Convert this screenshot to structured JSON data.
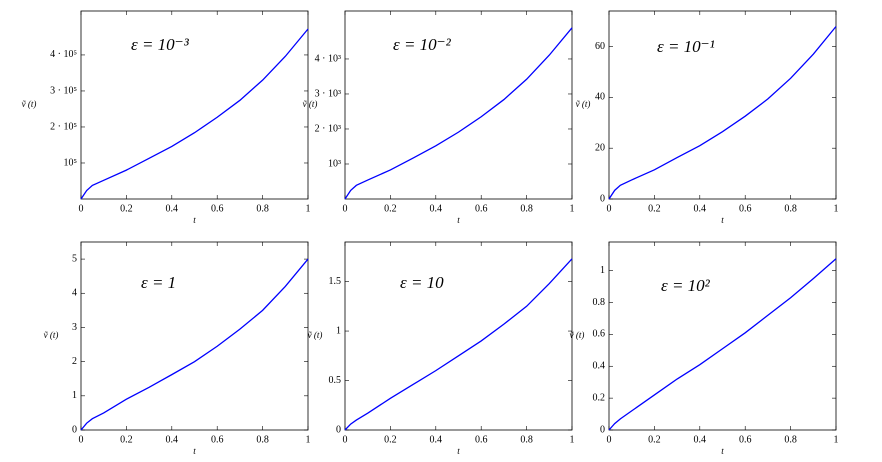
{
  "chart_data": [
    {
      "type": "line",
      "annotation": "ε = 10⁻³",
      "xlabel": "t",
      "ylabel": "ṽ (t)",
      "x": [
        0,
        0.025,
        0.05,
        0.1,
        0.2,
        0.3,
        0.4,
        0.5,
        0.6,
        0.7,
        0.8,
        0.9,
        1
      ],
      "series": [
        {
          "color": "#0000ff",
          "values": [
            0,
            23600,
            37800,
            51900,
            80200,
            113000,
            146000,
            184000,
            227000,
            274000,
            330000,
            396000,
            472000
          ]
        }
      ],
      "xlim": [
        0,
        1
      ],
      "ylim": [
        0,
        522000
      ],
      "xticks": [
        0,
        0.2,
        0.4,
        0.6,
        0.8,
        1
      ],
      "yticks": [
        {
          "value": 100000,
          "label": "10⁵"
        },
        {
          "value": 200000,
          "label": "2 · 10⁵"
        },
        {
          "value": 300000,
          "label": "3 · 10⁵"
        },
        {
          "value": 400000,
          "label": "4 · 10⁵"
        }
      ]
    },
    {
      "type": "line",
      "annotation": "ε = 10⁻²",
      "xlabel": "t",
      "ylabel": "ṽ (t)",
      "x": [
        0,
        0.025,
        0.05,
        0.1,
        0.2,
        0.3,
        0.4,
        0.5,
        0.6,
        0.7,
        0.8,
        0.9,
        1
      ],
      "series": [
        {
          "color": "#0000ff",
          "values": [
            0,
            245,
            390,
            540,
            830,
            1170,
            1520,
            1910,
            2350,
            2840,
            3420,
            4110,
            4890
          ]
        }
      ],
      "xlim": [
        0,
        1
      ],
      "ylim": [
        0,
        5370
      ],
      "xticks": [
        0,
        0.2,
        0.4,
        0.6,
        0.8,
        1
      ],
      "yticks": [
        {
          "value": 1000,
          "label": "10³"
        },
        {
          "value": 2000,
          "label": "2 · 10³"
        },
        {
          "value": 3000,
          "label": "3 · 10³"
        },
        {
          "value": 4000,
          "label": "4 · 10³"
        }
      ]
    },
    {
      "type": "line",
      "annotation": "ε = 10⁻¹",
      "xlabel": "t",
      "ylabel": "ṽ (t)",
      "x": [
        0,
        0.025,
        0.05,
        0.1,
        0.2,
        0.3,
        0.4,
        0.5,
        0.6,
        0.7,
        0.8,
        0.9,
        1
      ],
      "series": [
        {
          "color": "#0000ff",
          "values": [
            0,
            3.4,
            5.4,
            7.5,
            11.5,
            16.3,
            21,
            26.5,
            32.6,
            39.4,
            47.5,
            57,
            67.9
          ]
        }
      ],
      "xlim": [
        0,
        1
      ],
      "ylim": [
        0,
        74
      ],
      "xticks": [
        0,
        0.2,
        0.4,
        0.6,
        0.8,
        1
      ],
      "yticks": [
        0,
        20,
        40,
        60
      ]
    },
    {
      "type": "line",
      "annotation": "ε = 1",
      "xlabel": "t",
      "ylabel": "ṽ (t)",
      "x": [
        0,
        0.025,
        0.05,
        0.1,
        0.2,
        0.3,
        0.4,
        0.5,
        0.6,
        0.7,
        0.8,
        0.9,
        1
      ],
      "series": [
        {
          "color": "#0000ff",
          "values": [
            0,
            0.2,
            0.33,
            0.5,
            0.9,
            1.25,
            1.62,
            2.0,
            2.45,
            2.95,
            3.5,
            4.2,
            5.0
          ]
        }
      ],
      "xlim": [
        0,
        1
      ],
      "ylim": [
        0,
        5.5
      ],
      "xticks": [
        0,
        0.2,
        0.4,
        0.6,
        0.8,
        1
      ],
      "yticks": [
        0,
        1,
        2,
        3,
        4,
        5
      ]
    },
    {
      "type": "line",
      "annotation": "ε = 10",
      "xlabel": "t",
      "ylabel": "ṽ (t)",
      "x": [
        0,
        0.025,
        0.05,
        0.1,
        0.2,
        0.3,
        0.4,
        0.5,
        0.6,
        0.7,
        0.8,
        0.9,
        1
      ],
      "series": [
        {
          "color": "#0000ff",
          "values": [
            0,
            0.06,
            0.1,
            0.17,
            0.32,
            0.46,
            0.6,
            0.75,
            0.9,
            1.07,
            1.25,
            1.48,
            1.73
          ]
        }
      ],
      "xlim": [
        0,
        1
      ],
      "ylim": [
        0,
        1.9
      ],
      "xticks": [
        0,
        0.2,
        0.4,
        0.6,
        0.8,
        1
      ],
      "yticks": [
        0,
        0.5,
        1,
        1.5
      ]
    },
    {
      "type": "line",
      "annotation": "ε = 10²",
      "xlabel": "t",
      "ylabel": "ṽ (t)",
      "x": [
        0,
        0.025,
        0.05,
        0.1,
        0.2,
        0.3,
        0.4,
        0.5,
        0.6,
        0.7,
        0.8,
        0.9,
        1
      ],
      "series": [
        {
          "color": "#0000ff",
          "values": [
            0,
            0.04,
            0.07,
            0.12,
            0.22,
            0.32,
            0.41,
            0.51,
            0.61,
            0.72,
            0.83,
            0.95,
            1.075
          ]
        }
      ],
      "xlim": [
        0,
        1
      ],
      "ylim": [
        0,
        1.18
      ],
      "xticks": [
        0,
        0.2,
        0.4,
        0.6,
        0.8,
        1
      ],
      "yticks": [
        0,
        0.2,
        0.4,
        0.6,
        0.8,
        1
      ]
    }
  ]
}
